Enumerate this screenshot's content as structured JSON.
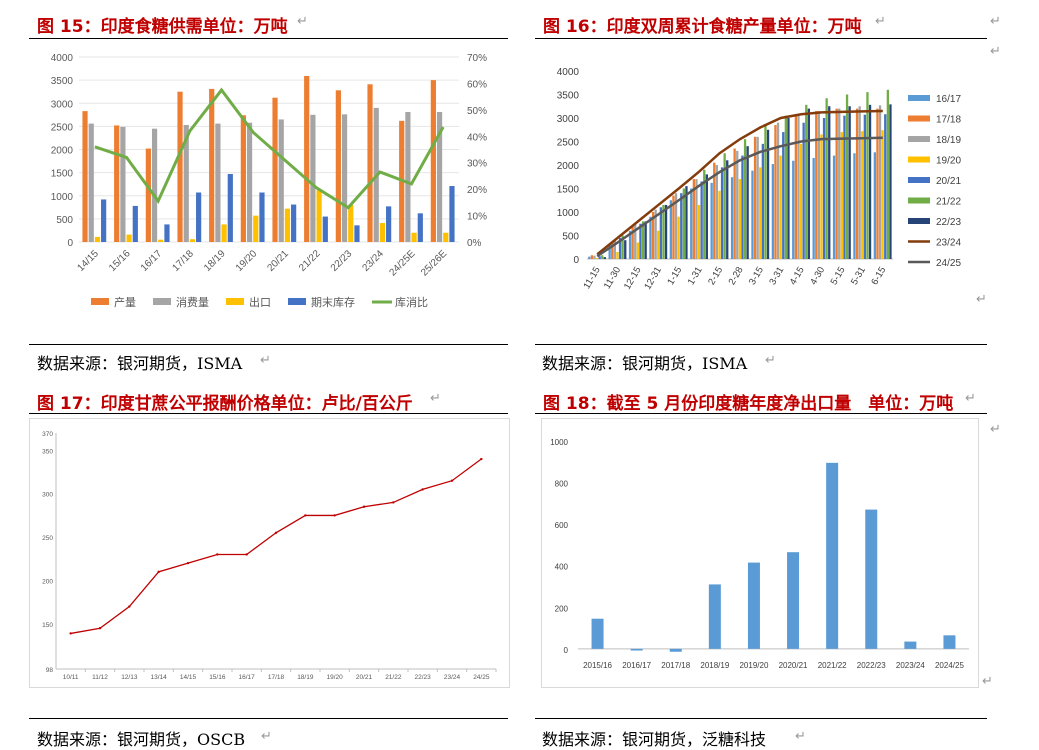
{
  "panels": {
    "p15": {
      "title": "图 15：印度食糖供需单位：万吨",
      "source": "数据来源：银河期货，ISMA"
    },
    "p16": {
      "title": "图 16：印度双周累计食糖产量单位：万吨",
      "source": "数据来源：银河期货，ISMA"
    },
    "p17": {
      "title": "图 17：印度甘蔗公平报酬价格单位：卢比/百公斤",
      "source": "数据来源：银河期货，OSCB"
    },
    "p18": {
      "title": "图 18：截至 5 月份印度糖年度净出口量　单位：万吨",
      "source": "数据来源：银河期货，泛糖科技"
    }
  },
  "marks": {
    "return": "↵"
  },
  "chart_data": [
    {
      "id": "fig15",
      "type": "bar",
      "categories": [
        "14/15",
        "15/16",
        "16/17",
        "17/18",
        "18/19",
        "19/20",
        "20/21",
        "21/22",
        "22/23",
        "23/24",
        "24/25E",
        "25/26E"
      ],
      "series": [
        {
          "name": "产量",
          "kind": "bar",
          "color": "#ed7d31",
          "values": [
            2830,
            2520,
            2020,
            3250,
            3310,
            2740,
            3120,
            3590,
            3280,
            3410,
            2620,
            3500
          ]
        },
        {
          "name": "消费量",
          "kind": "bar",
          "color": "#a5a5a5",
          "values": [
            2560,
            2490,
            2450,
            2530,
            2560,
            2580,
            2650,
            2750,
            2760,
            2900,
            2810,
            2810
          ]
        },
        {
          "name": "出口",
          "kind": "bar",
          "color": "#ffc000",
          "values": [
            110,
            160,
            50,
            60,
            380,
            570,
            720,
            1120,
            800,
            410,
            200,
            200
          ]
        },
        {
          "name": "期末库存",
          "kind": "bar",
          "color": "#4472c4",
          "values": [
            920,
            780,
            380,
            1070,
            1470,
            1070,
            810,
            550,
            360,
            770,
            620,
            1210
          ]
        },
        {
          "name": "库消比",
          "kind": "line",
          "axis": "right",
          "color": "#70ad47",
          "values": [
            0.36,
            0.32,
            0.155,
            0.42,
            0.575,
            0.415,
            0.31,
            0.205,
            0.13,
            0.265,
            0.22,
            0.435
          ]
        }
      ],
      "yticks_left": [
        "0",
        "500",
        "1000",
        "1500",
        "2000",
        "2500",
        "3000",
        "3500",
        "4000"
      ],
      "yticks_right": [
        "0%",
        "10%",
        "20%",
        "30%",
        "40%",
        "50%",
        "60%",
        "70%"
      ],
      "ylim": [
        0,
        4000
      ],
      "ylim_right": [
        0,
        0.7
      ]
    },
    {
      "id": "fig16",
      "type": "bar",
      "categories": [
        "11-15",
        "11-30",
        "12-15",
        "12-31",
        "1-15",
        "1-31",
        "2-15",
        "2-28",
        "3-15",
        "3-31",
        "4-15",
        "4-30",
        "5-15",
        "5-31",
        "6-15"
      ],
      "series": [
        {
          "name": "16/17",
          "kind": "bar",
          "color": "#5b9bd5",
          "values": [
            50,
            300,
            600,
            900,
            1250,
            1500,
            1620,
            1740,
            1880,
            2020,
            2090,
            2150,
            2200,
            2250,
            2270
          ]
        },
        {
          "name": "17/18",
          "kind": "bar",
          "color": "#ed7d31",
          "values": [
            80,
            350,
            700,
            1000,
            1350,
            1700,
            2050,
            2350,
            2600,
            2850,
            3050,
            3150,
            3200,
            3200,
            3200
          ]
        },
        {
          "name": "18/19",
          "kind": "bar",
          "color": "#a5a5a5",
          "values": [
            70,
            400,
            750,
            1050,
            1400,
            1700,
            2000,
            2300,
            2600,
            2900,
            3050,
            3150,
            3200,
            3250,
            3270
          ]
        },
        {
          "name": "19/20",
          "kind": "bar",
          "color": "#ffc000",
          "values": [
            20,
            150,
            350,
            600,
            900,
            1150,
            1450,
            1700,
            1950,
            2200,
            2450,
            2650,
            2700,
            2720,
            2740
          ]
        },
        {
          "name": "20/21",
          "kind": "bar",
          "color": "#4472c4",
          "values": [
            60,
            450,
            750,
            1100,
            1400,
            1650,
            1950,
            2200,
            2450,
            2700,
            2900,
            3000,
            3050,
            3070,
            3080
          ]
        },
        {
          "name": "21/22",
          "kind": "bar",
          "color": "#70ad47",
          "values": [
            80,
            500,
            800,
            1150,
            1500,
            1900,
            2250,
            2550,
            2850,
            3050,
            3280,
            3420,
            3500,
            3550,
            3600
          ]
        },
        {
          "name": "22/23",
          "kind": "bar",
          "color": "#264478",
          "values": [
            40,
            400,
            800,
            1150,
            1550,
            1800,
            2100,
            2400,
            2750,
            3000,
            3200,
            3250,
            3250,
            3280,
            3290
          ]
        },
        {
          "name": "23/24",
          "kind": "line",
          "color": "#843c0c",
          "values": [
            100,
            450,
            800,
            1150,
            1500,
            1860,
            2250,
            2550,
            2800,
            3000,
            3080,
            3120,
            3130,
            3140,
            3150
          ]
        },
        {
          "name": "24/25",
          "kind": "line",
          "color": "#595959",
          "values": [
            60,
            350,
            650,
            950,
            1250,
            1560,
            1850,
            2100,
            2280,
            2400,
            2500,
            2550,
            2560,
            2570,
            2580
          ]
        }
      ],
      "yticks": [
        "0",
        "500",
        "1000",
        "1500",
        "2000",
        "2500",
        "3000",
        "3500",
        "4000"
      ],
      "ylim": [
        0,
        4000
      ]
    },
    {
      "id": "fig17",
      "type": "line",
      "categories": [
        "10/11",
        "11/12",
        "12/13",
        "13/14",
        "14/15",
        "15/16",
        "16/17",
        "17/18",
        "18/19",
        "19/20",
        "20/21",
        "21/22",
        "22/23",
        "23/24",
        "24/25"
      ],
      "series": [
        {
          "name": "",
          "color": "#c00000",
          "values": [
            139,
            145,
            170,
            210,
            220,
            230,
            230,
            255,
            275,
            275,
            285,
            290,
            305,
            315,
            340
          ]
        }
      ],
      "yticks": [
        {
          "v": 98,
          "t": "98"
        },
        {
          "v": 150,
          "t": "150"
        },
        {
          "v": 200,
          "t": "200"
        },
        {
          "v": 250,
          "t": "250"
        },
        {
          "v": 300,
          "t": "300"
        },
        {
          "v": 350,
          "t": "350"
        },
        {
          "v": 370,
          "t": "370"
        }
      ],
      "ylim": [
        98,
        370
      ]
    },
    {
      "id": "fig18",
      "type": "bar",
      "categories": [
        "2015/16",
        "2016/17",
        "2017/18",
        "2018/19",
        "2019/20",
        "2020/21",
        "2021/22",
        "2022/23",
        "2023/24",
        "2024/25"
      ],
      "series": [
        {
          "name": "",
          "color": "#5b9bd5",
          "values": [
            145,
            -8,
            -14,
            310,
            415,
            465,
            895,
            670,
            35,
            65
          ]
        }
      ],
      "yticks": [
        "0",
        "200",
        "400",
        "600",
        "800",
        "1000"
      ],
      "ylim": [
        -20,
        1000
      ]
    }
  ]
}
